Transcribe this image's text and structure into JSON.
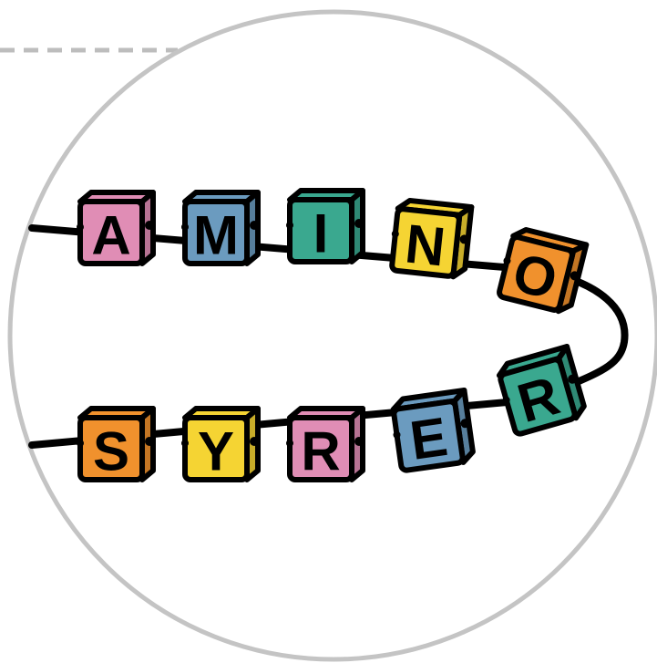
{
  "blocks": {
    "top": [
      "A",
      "M",
      "I",
      "N",
      "O"
    ],
    "bottom": [
      "S",
      "Y",
      "R",
      "E",
      "R"
    ]
  }
}
